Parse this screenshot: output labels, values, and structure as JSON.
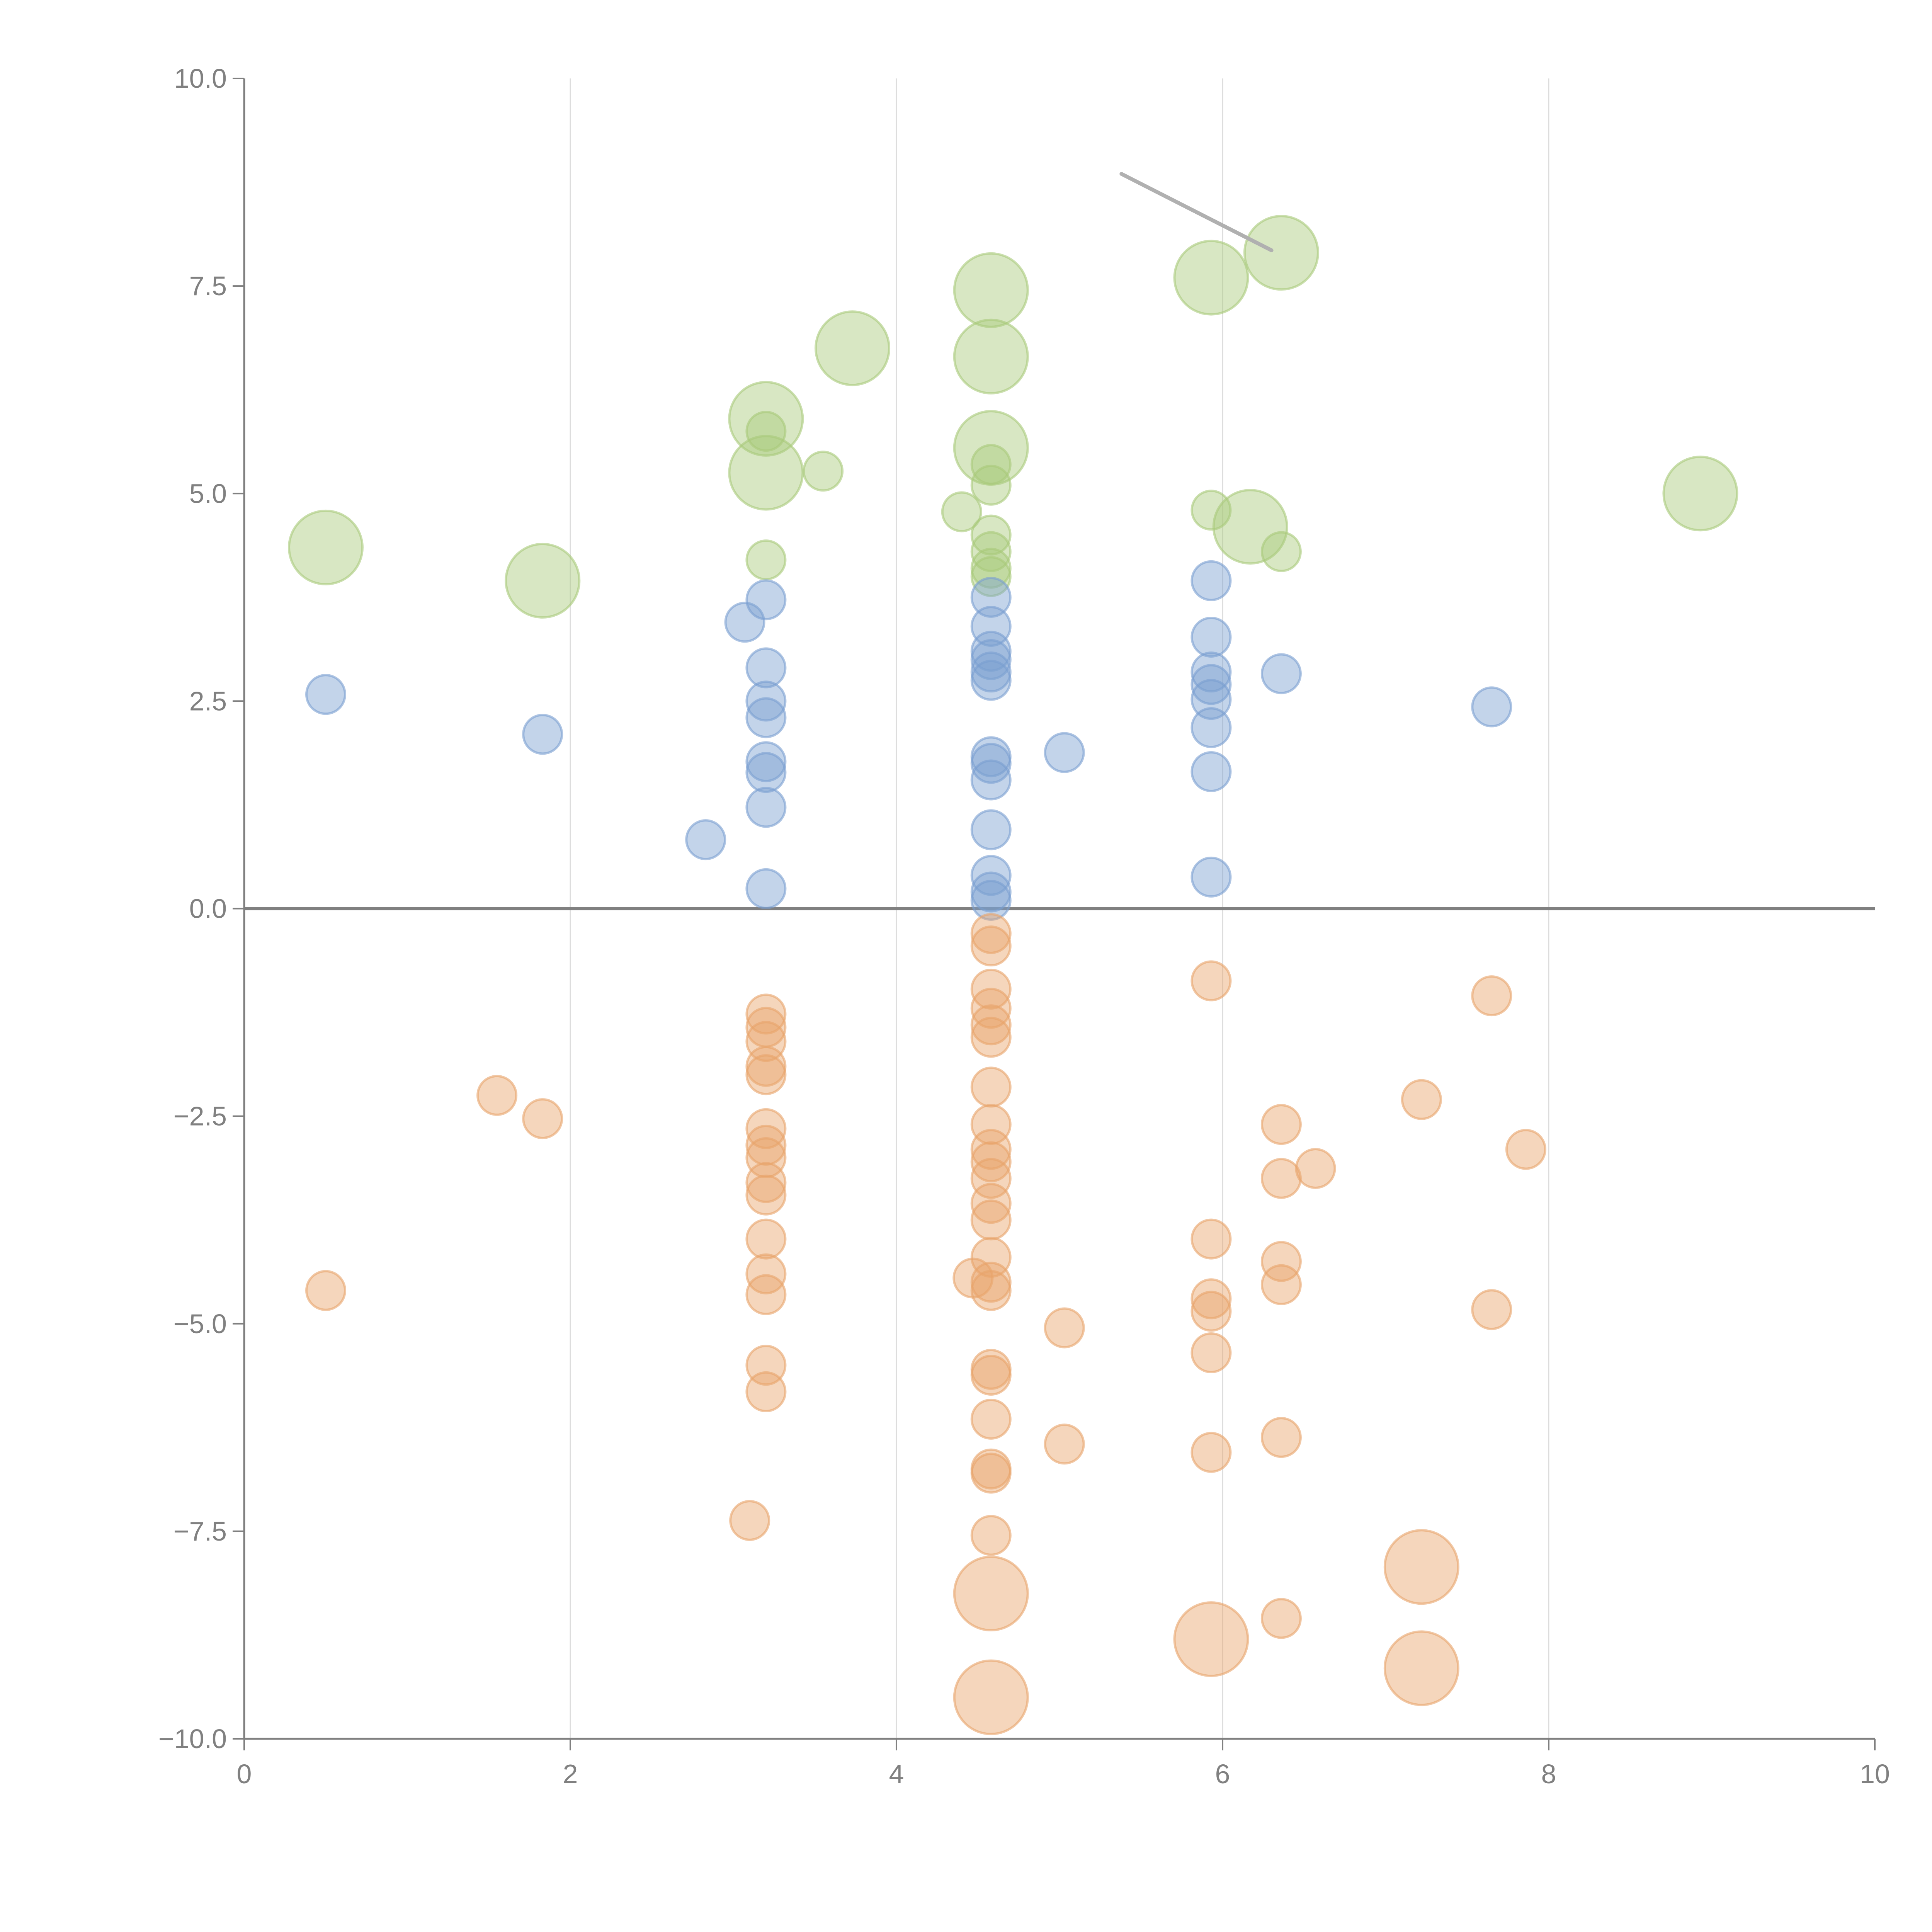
{
  "chart_data": {
    "type": "scatter",
    "title": "",
    "xlabel": "",
    "ylabel": "",
    "xlim": [
      0,
      10
    ],
    "ylim": [
      -10,
      10
    ],
    "grid": "vertical",
    "legend": "none",
    "x_ticks": [
      "0",
      "2",
      "4",
      "6",
      "8",
      "10"
    ],
    "y_ticks": [
      "−10.0",
      "−7.5",
      "−5.0",
      "−2.5",
      "0.0",
      "2.5",
      "5.0",
      "7.5",
      "10.0"
    ],
    "colors": {
      "green": "#a9c97a",
      "blue": "#7a9fd1",
      "orange": "#e8a36b",
      "axis": "#808080",
      "grid": "#dddddd",
      "pointer": "#b0b0b0"
    },
    "series": [
      {
        "name": "green",
        "points": [
          [
            0.5,
            4.35,
            3
          ],
          [
            1.83,
            3.95,
            3
          ],
          [
            3.2,
            5.9,
            3
          ],
          [
            3.2,
            5.25,
            3
          ],
          [
            3.2,
            5.75,
            1
          ],
          [
            3.2,
            4.2,
            1
          ],
          [
            3.55,
            5.27,
            1
          ],
          [
            3.73,
            6.75,
            3
          ],
          [
            4.4,
            4.78,
            1
          ],
          [
            4.58,
            7.45,
            3
          ],
          [
            4.58,
            6.65,
            3
          ],
          [
            4.58,
            5.55,
            3
          ],
          [
            4.58,
            5.35,
            1
          ],
          [
            4.58,
            5.1,
            1
          ],
          [
            4.58,
            4.5,
            1
          ],
          [
            4.58,
            4.3,
            1
          ],
          [
            4.58,
            4.1,
            1
          ],
          [
            4.58,
            4.0,
            1
          ],
          [
            5.93,
            7.6,
            3
          ],
          [
            6.36,
            7.9,
            3
          ],
          [
            5.93,
            4.8,
            1
          ],
          [
            6.17,
            4.6,
            3
          ],
          [
            6.36,
            4.3,
            1
          ],
          [
            8.93,
            5.0,
            3
          ]
        ]
      },
      {
        "name": "blue",
        "points": [
          [
            0.5,
            2.58,
            1
          ],
          [
            1.83,
            2.1,
            1
          ],
          [
            2.83,
            0.83,
            1
          ],
          [
            3.07,
            3.45,
            1
          ],
          [
            3.2,
            3.72,
            1
          ],
          [
            3.2,
            2.9,
            1
          ],
          [
            3.2,
            2.5,
            1
          ],
          [
            3.2,
            2.3,
            1
          ],
          [
            3.2,
            1.77,
            1
          ],
          [
            3.2,
            1.64,
            1
          ],
          [
            3.2,
            1.22,
            1
          ],
          [
            3.2,
            0.24,
            1
          ],
          [
            4.58,
            3.75,
            1
          ],
          [
            4.58,
            3.4,
            1
          ],
          [
            4.58,
            3.1,
            1
          ],
          [
            4.58,
            3.0,
            1
          ],
          [
            4.58,
            2.85,
            1
          ],
          [
            4.58,
            2.75,
            1
          ],
          [
            4.58,
            1.83,
            1
          ],
          [
            4.58,
            1.75,
            1
          ],
          [
            4.58,
            1.55,
            1
          ],
          [
            4.58,
            0.95,
            1
          ],
          [
            4.58,
            0.4,
            1
          ],
          [
            4.58,
            0.2,
            1
          ],
          [
            4.58,
            0.1,
            1
          ],
          [
            5.03,
            1.88,
            1
          ],
          [
            5.93,
            3.95,
            1
          ],
          [
            5.93,
            3.27,
            1
          ],
          [
            5.93,
            2.85,
            1
          ],
          [
            5.93,
            2.7,
            1
          ],
          [
            5.93,
            2.52,
            1
          ],
          [
            5.93,
            2.18,
            1
          ],
          [
            5.93,
            1.65,
            1
          ],
          [
            5.93,
            0.38,
            1
          ],
          [
            6.36,
            2.83,
            1
          ],
          [
            7.65,
            2.43,
            1
          ]
        ]
      },
      {
        "name": "orange",
        "points": [
          [
            0.5,
            -4.6,
            1
          ],
          [
            1.55,
            -2.25,
            1
          ],
          [
            1.83,
            -2.53,
            1
          ],
          [
            3.1,
            -7.37,
            1
          ],
          [
            3.2,
            -1.27,
            1
          ],
          [
            3.2,
            -1.43,
            1
          ],
          [
            3.2,
            -1.6,
            1
          ],
          [
            3.2,
            -1.9,
            1
          ],
          [
            3.2,
            -2.0,
            1
          ],
          [
            3.2,
            -2.65,
            1
          ],
          [
            3.2,
            -2.85,
            1
          ],
          [
            3.2,
            -3.0,
            1
          ],
          [
            3.2,
            -3.3,
            1
          ],
          [
            3.2,
            -3.45,
            1
          ],
          [
            3.2,
            -3.98,
            1
          ],
          [
            3.2,
            -4.4,
            1
          ],
          [
            3.2,
            -4.65,
            1
          ],
          [
            3.2,
            -5.5,
            1
          ],
          [
            3.2,
            -5.82,
            1
          ],
          [
            4.47,
            -4.45,
            1
          ],
          [
            4.58,
            -0.3,
            1
          ],
          [
            4.58,
            -0.45,
            1
          ],
          [
            4.58,
            -0.97,
            1
          ],
          [
            4.58,
            -1.2,
            1
          ],
          [
            4.58,
            -1.4,
            1
          ],
          [
            4.58,
            -1.55,
            1
          ],
          [
            4.58,
            -2.15,
            1
          ],
          [
            4.58,
            -2.6,
            1
          ],
          [
            4.58,
            -2.9,
            1
          ],
          [
            4.58,
            -3.05,
            1
          ],
          [
            4.58,
            -3.25,
            1
          ],
          [
            4.58,
            -3.55,
            1
          ],
          [
            4.58,
            -3.75,
            1
          ],
          [
            4.58,
            -4.2,
            1
          ],
          [
            4.58,
            -4.5,
            1
          ],
          [
            4.58,
            -4.6,
            1
          ],
          [
            4.58,
            -5.55,
            1
          ],
          [
            4.58,
            -5.62,
            1
          ],
          [
            4.58,
            -6.15,
            1
          ],
          [
            4.58,
            -6.75,
            1
          ],
          [
            4.58,
            -6.8,
            1
          ],
          [
            4.58,
            -7.55,
            1
          ],
          [
            4.58,
            -8.25,
            3
          ],
          [
            4.58,
            -9.5,
            3
          ],
          [
            5.03,
            -5.05,
            1
          ],
          [
            5.03,
            -6.45,
            1
          ],
          [
            5.93,
            -0.87,
            1
          ],
          [
            5.93,
            -3.98,
            1
          ],
          [
            5.93,
            -4.7,
            1
          ],
          [
            5.93,
            -4.85,
            1
          ],
          [
            5.93,
            -5.35,
            1
          ],
          [
            5.93,
            -6.55,
            1
          ],
          [
            5.93,
            -8.8,
            3
          ],
          [
            6.36,
            -2.6,
            1
          ],
          [
            6.36,
            -3.25,
            1
          ],
          [
            6.36,
            -4.25,
            1
          ],
          [
            6.36,
            -4.53,
            1
          ],
          [
            6.36,
            -6.37,
            1
          ],
          [
            6.36,
            -8.55,
            1
          ],
          [
            6.57,
            -3.13,
            1
          ],
          [
            7.22,
            -2.3,
            1
          ],
          [
            7.22,
            -7.93,
            3
          ],
          [
            7.22,
            -9.15,
            3
          ],
          [
            7.65,
            -1.05,
            1
          ],
          [
            7.65,
            -4.83,
            1
          ],
          [
            7.86,
            -2.9,
            1
          ]
        ]
      }
    ],
    "annotation_line": {
      "from": [
        5.38,
        8.85
      ],
      "to": [
        6.3,
        7.93
      ]
    }
  }
}
